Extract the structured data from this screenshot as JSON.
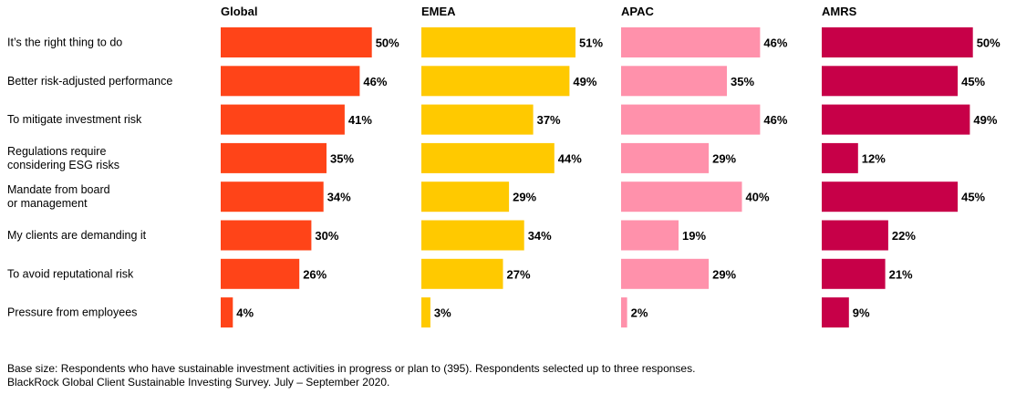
{
  "chart_data": {
    "type": "bar",
    "orientation": "horizontal",
    "categories": [
      [
        "It’s the right thing to do"
      ],
      [
        "Better risk-adjusted performance"
      ],
      [
        "To mitigate investment risk"
      ],
      [
        "Regulations require",
        "considering ESG risks"
      ],
      [
        "Mandate from board",
        "or management"
      ],
      [
        "My clients are demanding it"
      ],
      [
        "To avoid reputational risk"
      ],
      [
        "Pressure from employees"
      ]
    ],
    "series": [
      {
        "name": "Global",
        "color": "#FF4418",
        "values": [
          50,
          46,
          41,
          35,
          34,
          30,
          26,
          4
        ]
      },
      {
        "name": "EMEA",
        "color": "#FFC900",
        "values": [
          51,
          49,
          37,
          44,
          29,
          34,
          27,
          3
        ]
      },
      {
        "name": "APAC",
        "color": "#FF91AB",
        "values": [
          46,
          35,
          46,
          29,
          40,
          19,
          29,
          2
        ]
      },
      {
        "name": "AMRS",
        "color": "#C70048",
        "values": [
          50,
          45,
          49,
          12,
          45,
          22,
          21,
          9
        ]
      }
    ],
    "value_suffix": "%",
    "xlim": [
      0,
      51
    ]
  },
  "footnote": {
    "line1": "Base size: Respondents who have sustainable investment activities in progress or plan to (395). Respondents selected up to three responses.",
    "line2": "BlackRock Global Client Sustainable Investing Survey. July – September 2020."
  }
}
